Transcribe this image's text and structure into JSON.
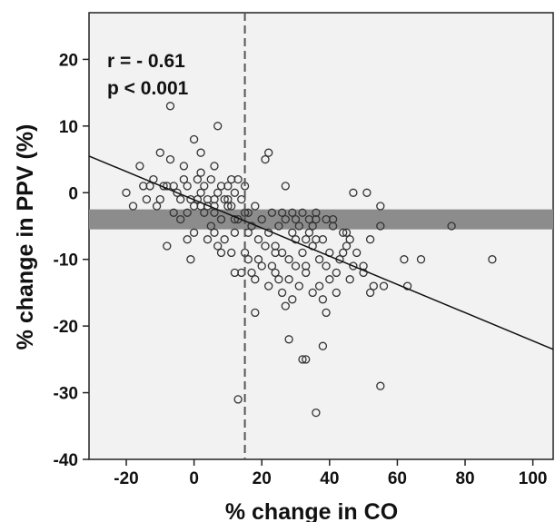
{
  "chart_data": {
    "type": "scatter",
    "title": "",
    "xlabel": "% change in CO",
    "ylabel": "% change in PPV (%)",
    "xlim": [
      -31,
      106
    ],
    "ylim": [
      -40,
      27
    ],
    "x_ticks": [
      -20,
      0,
      20,
      40,
      60,
      80,
      100
    ],
    "y_ticks": [
      -40,
      -30,
      -20,
      -10,
      0,
      10,
      20
    ],
    "x_tick_labels": [
      "-20",
      "0",
      "20",
      "40",
      "60",
      "80",
      "100"
    ],
    "y_tick_labels": [
      "-40",
      "-30",
      "-20",
      "-10",
      "0",
      "10",
      "20"
    ],
    "grid": false,
    "background": "#f2f2f2",
    "marker_color": "#333333",
    "annotations": [
      "r = - 0.61",
      "p < 0.001"
    ],
    "vertical_reference_line": {
      "x": 15,
      "style": "dashed"
    },
    "horizontal_band": {
      "y_min": -5.5,
      "y_max": -2.5,
      "color": "#8c8c8c"
    },
    "regression_line": {
      "x": [
        -31,
        106
      ],
      "y": [
        5.5,
        -23.5
      ]
    },
    "series": [
      {
        "values": [
          [
            -7,
            13
          ],
          [
            7,
            10
          ],
          [
            0,
            8
          ],
          [
            -10,
            6
          ],
          [
            -7,
            5
          ],
          [
            2,
            6
          ],
          [
            -16,
            4
          ],
          [
            6,
            4
          ],
          [
            -13,
            1
          ],
          [
            -20,
            0
          ],
          [
            -18,
            -2
          ],
          [
            -14,
            -1
          ],
          [
            -11,
            -2
          ],
          [
            -8,
            1
          ],
          [
            -5,
            0
          ],
          [
            -3,
            2
          ],
          [
            -2,
            1
          ],
          [
            -1,
            -1
          ],
          [
            1,
            2
          ],
          [
            2,
            0
          ],
          [
            3,
            1
          ],
          [
            4,
            -1
          ],
          [
            5,
            2
          ],
          [
            6,
            -2
          ],
          [
            7,
            0
          ],
          [
            8,
            1
          ],
          [
            9,
            -1
          ],
          [
            10,
            1
          ],
          [
            11,
            -2
          ],
          [
            12,
            0
          ],
          [
            13,
            2
          ],
          [
            14,
            -1
          ],
          [
            15,
            1
          ],
          [
            16,
            -3
          ],
          [
            -10,
            -1
          ],
          [
            -6,
            -3
          ],
          [
            -4,
            -4
          ],
          [
            0,
            -2
          ],
          [
            3,
            -3
          ],
          [
            5,
            -5
          ],
          [
            6,
            -3
          ],
          [
            8,
            -4
          ],
          [
            10,
            -2
          ],
          [
            12,
            -6
          ],
          [
            13,
            -4
          ],
          [
            15,
            -3
          ],
          [
            17,
            -5
          ],
          [
            18,
            -2
          ],
          [
            19,
            -7
          ],
          [
            20,
            -4
          ],
          [
            22,
            -6
          ],
          [
            23,
            -3
          ],
          [
            24,
            -8
          ],
          [
            25,
            -5
          ],
          [
            26,
            -9
          ],
          [
            27,
            -4
          ],
          [
            28,
            -10
          ],
          [
            29,
            -6
          ],
          [
            30,
            -7
          ],
          [
            31,
            -5
          ],
          [
            32,
            -9
          ],
          [
            33,
            -11
          ],
          [
            34,
            -6
          ],
          [
            35,
            -8
          ],
          [
            36,
            -4
          ],
          [
            37,
            -10
          ],
          [
            38,
            -7
          ],
          [
            40,
            -9
          ],
          [
            41,
            -5
          ],
          [
            42,
            -12
          ],
          [
            43,
            -10
          ],
          [
            44,
            -6
          ],
          [
            45,
            -8
          ],
          [
            46,
            -13
          ],
          [
            48,
            -9
          ],
          [
            50,
            -11
          ],
          [
            52,
            -7
          ],
          [
            53,
            -14
          ],
          [
            55,
            -5
          ],
          [
            55,
            -2
          ],
          [
            47,
            0
          ],
          [
            51,
            0
          ],
          [
            21,
            5
          ],
          [
            22,
            6
          ],
          [
            27,
            1
          ],
          [
            -8,
            -8
          ],
          [
            -1,
            -10
          ],
          [
            0,
            -6
          ],
          [
            -2,
            -7
          ],
          [
            4,
            -7
          ],
          [
            7,
            -8
          ],
          [
            9,
            -7
          ],
          [
            11,
            -9
          ],
          [
            14,
            -12
          ],
          [
            16,
            -10
          ],
          [
            18,
            -13
          ],
          [
            20,
            -11
          ],
          [
            22,
            -14
          ],
          [
            24,
            -12
          ],
          [
            26,
            -15
          ],
          [
            27,
            -17
          ],
          [
            28,
            -13
          ],
          [
            29,
            -16
          ],
          [
            30,
            -11
          ],
          [
            31,
            -14
          ],
          [
            33,
            -12
          ],
          [
            35,
            -15
          ],
          [
            37,
            -14
          ],
          [
            38,
            -16
          ],
          [
            39,
            -18
          ],
          [
            40,
            -13
          ],
          [
            42,
            -15
          ],
          [
            44,
            -9
          ],
          [
            46,
            -7
          ],
          [
            50,
            -12
          ],
          [
            52,
            -15
          ],
          [
            56,
            -14
          ],
          [
            63,
            -14
          ],
          [
            62,
            -10
          ],
          [
            67,
            -10
          ],
          [
            76,
            -5
          ],
          [
            88,
            -10
          ],
          [
            28,
            -22
          ],
          [
            32,
            -25
          ],
          [
            33,
            -25
          ],
          [
            38,
            -23
          ],
          [
            36,
            -33
          ],
          [
            55,
            -29
          ],
          [
            13,
            -31
          ],
          [
            12,
            -12
          ],
          [
            18,
            -18
          ],
          [
            15,
            -9
          ],
          [
            19,
            -10
          ],
          [
            21,
            -8
          ],
          [
            23,
            -11
          ],
          [
            25,
            -13
          ],
          [
            17,
            -12
          ],
          [
            26,
            -3
          ],
          [
            29,
            -3
          ],
          [
            32,
            -3
          ],
          [
            34,
            -4
          ],
          [
            36,
            -3
          ],
          [
            39,
            -4
          ],
          [
            41,
            -4
          ],
          [
            45,
            -6
          ],
          [
            35,
            -5
          ],
          [
            30,
            -4
          ],
          [
            24,
            -9
          ],
          [
            33,
            -7
          ],
          [
            36,
            -7
          ],
          [
            39,
            -11
          ],
          [
            47,
            -11
          ],
          [
            11,
            2
          ],
          [
            10,
            -1
          ],
          [
            6,
            -1
          ],
          [
            4,
            -2
          ],
          [
            2,
            -2
          ],
          [
            1,
            -1
          ],
          [
            -2,
            -3
          ],
          [
            -4,
            -1
          ],
          [
            -6,
            1
          ],
          [
            -9,
            1
          ],
          [
            -12,
            2
          ],
          [
            -15,
            1
          ],
          [
            -3,
            4
          ],
          [
            2,
            3
          ],
          [
            6,
            -6
          ],
          [
            8,
            -9
          ],
          [
            12,
            -4
          ],
          [
            16,
            -6
          ]
        ]
      }
    ]
  }
}
